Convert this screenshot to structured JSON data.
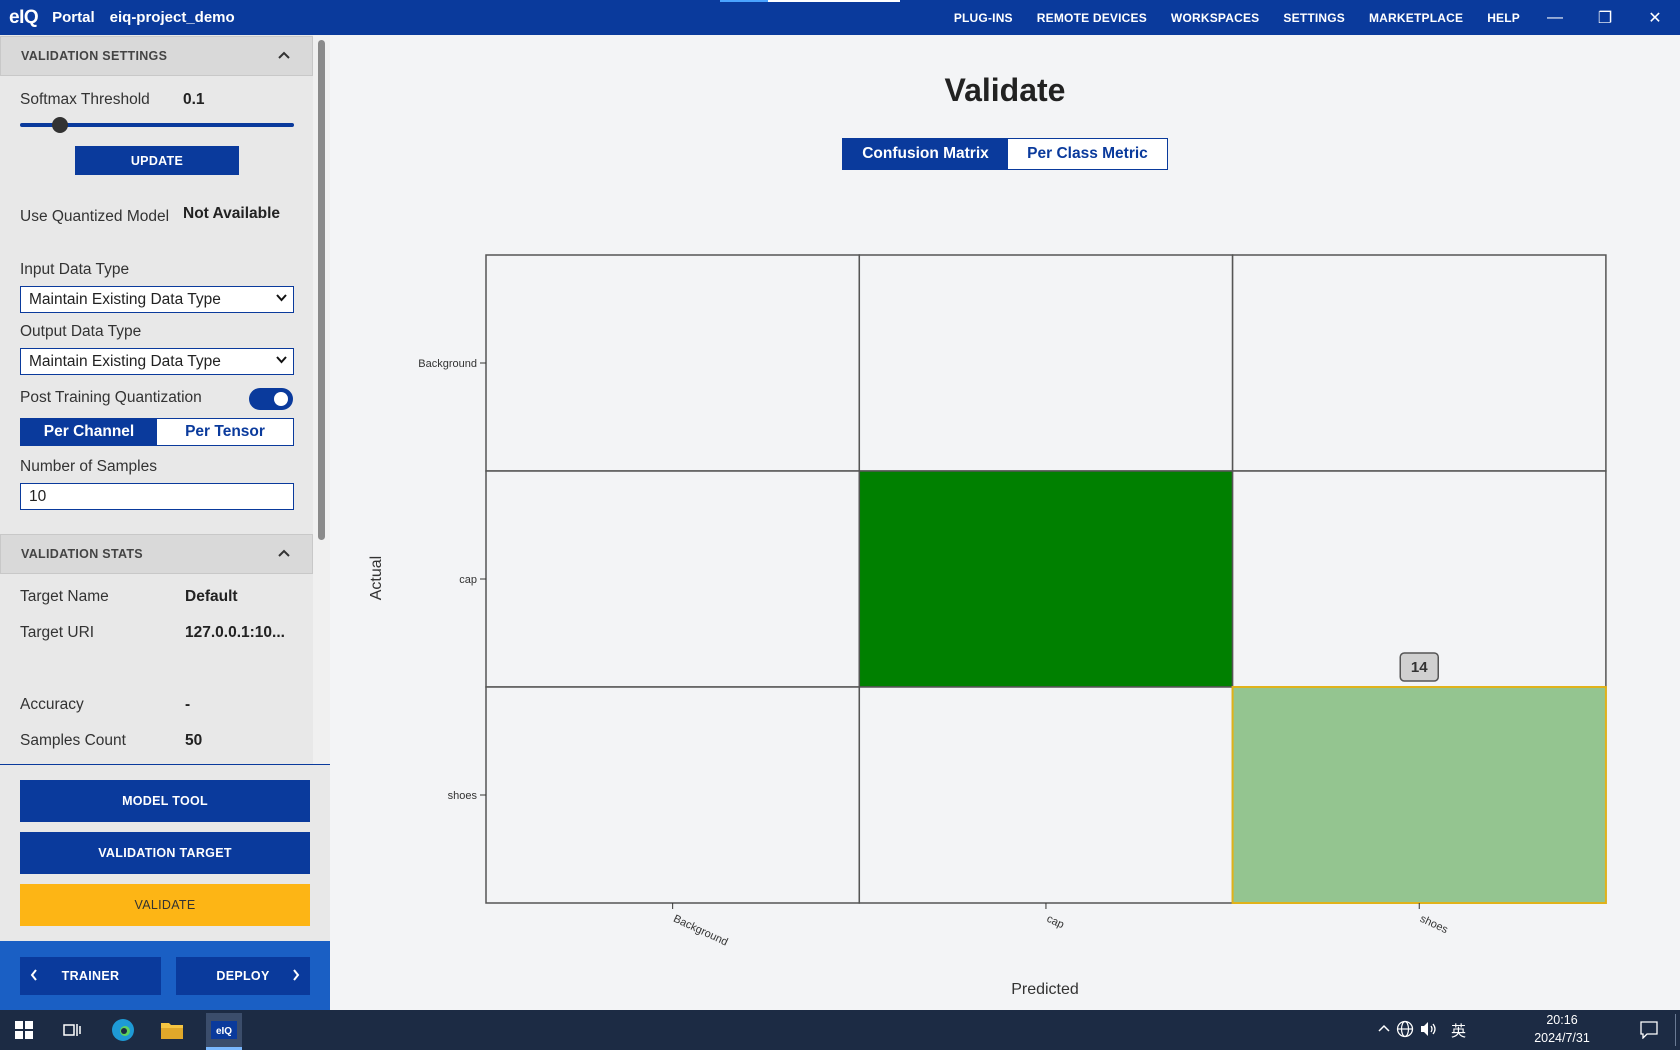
{
  "titlebar": {
    "logo": "eIQ",
    "app": "Portal",
    "project": "eiq-project_demo"
  },
  "topnav": [
    "PLUG-INS",
    "REMOTE DEVICES",
    "WORKSPACES",
    "SETTINGS",
    "MARKETPLACE",
    "HELP"
  ],
  "window_controls": {
    "minimize": "—",
    "restore": "❐",
    "close": "✕"
  },
  "sidebar": {
    "validation_settings": {
      "header": "VALIDATION SETTINGS",
      "softmax_label": "Softmax Threshold",
      "softmax_value": "0.1",
      "softmax_slider_fraction": 0.1,
      "update_button": "UPDATE",
      "quantized_label": "Use Quantized Model",
      "quantized_value": "Not Available",
      "input_type_label": "Input Data Type",
      "input_type_value": "Maintain Existing Data Type",
      "output_type_label": "Output Data Type",
      "output_type_value": "Maintain Existing Data Type",
      "ptq_label": "Post Training Quantization",
      "ptq_enabled": true,
      "per_channel": "Per Channel",
      "per_tensor": "Per Tensor",
      "samples_label": "Number of Samples",
      "samples_value": "10"
    },
    "validation_stats": {
      "header": "VALIDATION STATS",
      "target_name_label": "Target Name",
      "target_name_value": "Default",
      "target_uri_label": "Target URI",
      "target_uri_value": "127.0.0.1:10...",
      "accuracy_label": "Accuracy",
      "accuracy_value": "-",
      "samples_count_label": "Samples Count",
      "samples_count_value": "50"
    },
    "buttons": {
      "model_tool": "MODEL TOOL",
      "validation_target": "VALIDATION TARGET",
      "validate": "VALIDATE",
      "trainer": "TRAINER",
      "deploy": "DEPLOY"
    }
  },
  "main": {
    "title": "Validate",
    "tabs": [
      "Confusion Matrix",
      "Per Class Metric"
    ],
    "active_tab": "Confusion Matrix"
  },
  "chart_data": {
    "type": "heatmap",
    "xlabel": "Predicted",
    "ylabel": "Actual",
    "x_categories": [
      "Background",
      "cap",
      "shoes"
    ],
    "y_categories": [
      "Background",
      "cap",
      "shoes"
    ],
    "cells": [
      {
        "actual": "cap",
        "predicted": "cap",
        "color": "#008000"
      },
      {
        "actual": "shoes",
        "predicted": "shoes",
        "color": "#94c590",
        "highlighted": true,
        "tooltip": "14"
      }
    ],
    "empty_color": "#f3f4f6",
    "highlight_border": "#e0b21a"
  },
  "taskbar": {
    "time": "20:16",
    "date": "2024/7/31",
    "ime": "英"
  },
  "colors": {
    "brand": "#0a3a9c",
    "validate": "#fdb515"
  }
}
